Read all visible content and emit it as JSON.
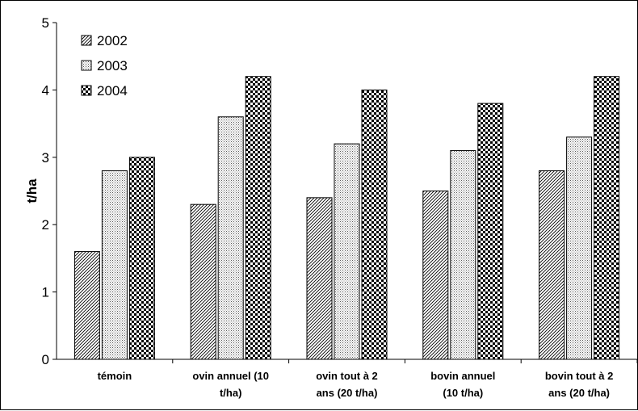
{
  "chart_data": {
    "type": "bar",
    "ylabel": "t/ha",
    "xlabel": "",
    "ylim": [
      0,
      5
    ],
    "yticks": [
      "0",
      "1",
      "2",
      "3",
      "4",
      "5"
    ],
    "categories": [
      [
        "témoin"
      ],
      [
        "ovin annuel (10",
        "t/ha)"
      ],
      [
        "ovin tout à 2",
        "ans (20 t/ha)"
      ],
      [
        "bovin annuel",
        "(10 t/ha)"
      ],
      [
        "bovin tout à 2",
        "ans (20 t/ha)"
      ]
    ],
    "series": [
      {
        "name": "2002",
        "pattern": "diagonal-hatch",
        "values": [
          1.6,
          2.3,
          2.4,
          2.5,
          2.8
        ]
      },
      {
        "name": "2003",
        "pattern": "fine-dots",
        "values": [
          2.8,
          3.6,
          3.2,
          3.1,
          3.3
        ]
      },
      {
        "name": "2004",
        "pattern": "checkerboard",
        "values": [
          3.0,
          4.2,
          4.0,
          3.8,
          4.2
        ]
      }
    ],
    "legend_position": "top-left",
    "grid": false
  }
}
